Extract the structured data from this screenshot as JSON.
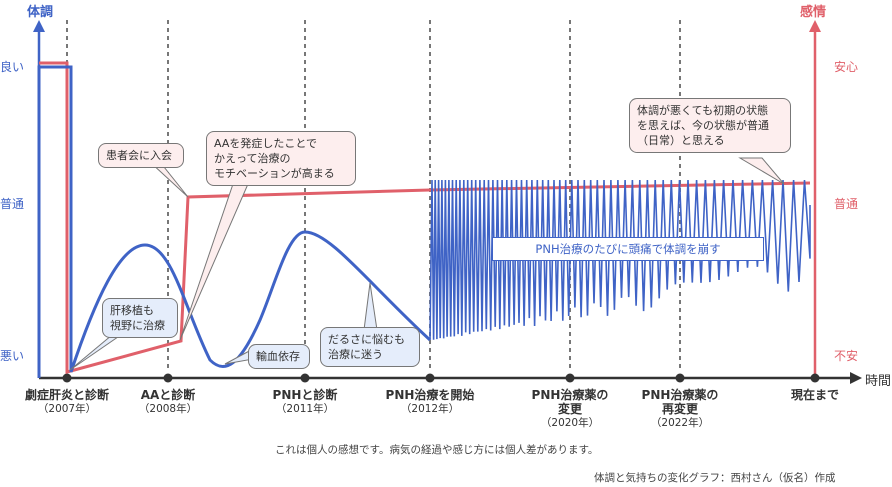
{
  "chart_data": {
    "type": "line",
    "title": "体調と気持ちの変化グラフ",
    "left_axis": {
      "title": "体調",
      "ticks": [
        "良い",
        "普通",
        "悪い"
      ],
      "color": "#3f63c6"
    },
    "right_axis": {
      "title": "感情",
      "ticks": [
        "安心",
        "普通",
        "不安"
      ],
      "color": "#e0606a"
    },
    "xlabel": "時間",
    "x_events": [
      {
        "label": "劇症肝炎と診断",
        "year": "（2007年）"
      },
      {
        "label": "AAと診断",
        "year": "（2008年）"
      },
      {
        "label": "PNHと診断",
        "year": "（2011年）"
      },
      {
        "label": "PNH治療を開始",
        "year": "（2012年）"
      },
      {
        "label": "PNH治療薬の変更",
        "year": "（2020年）"
      },
      {
        "label": "PNH治療薬の再変更",
        "year": "（2022年）"
      },
      {
        "label": "現在まで",
        "year": ""
      }
    ],
    "series": [
      {
        "name": "体調",
        "color": "#3f63c6",
        "description": "Starts at good (良い), drops sharply to worst (悪い) at 2007 diagnosis, rises to a hump just below normal before 2008, falls to bottom (輸血依存) before 2011, rises to near normal at 2011, declines to near bad by 2012, then oscillates rapidly between near-normal and bad after treatment starts, with oscillation amplitude gradually decreasing toward present.",
        "values_by_event": {
          "start": "良い",
          "2007": "悪い",
          "2008_peak": "やや悪い",
          "2011_trough": "悪い",
          "2011_peak": "やや悪い",
          "2012": "悪い",
          "2012_to_now": "振動(普通〜悪い)"
        }
      },
      {
        "name": "感情",
        "color": "#e0606a",
        "description": "Starts at 安心, drops to 不安 at 2007, gradually rises to slightly above 不安 by 2008, jumps to 普通 after joining patient association, then stays around 普通 with a slight upward trend until present.",
        "values_by_event": {
          "start": "安心",
          "2007": "不安",
          "2008": "やや不安",
          "after_2008": "普通",
          "now": "普通"
        }
      }
    ]
  },
  "labels": {
    "left_title": "体調",
    "right_title": "感情",
    "left_good": "良い",
    "left_normal": "普通",
    "left_bad": "悪い",
    "right_good": "安心",
    "right_normal": "普通",
    "right_bad": "不安",
    "x_title": "時間"
  },
  "x_labels": [
    {
      "label": "劇症肝炎と診断",
      "year": "（2007年）"
    },
    {
      "label": "AAと診断",
      "year": "（2008年）"
    },
    {
      "label": "PNHと診断",
      "year": "（2011年）"
    },
    {
      "label": "PNH治療を開始",
      "year": "（2012年）"
    },
    {
      "label_l1": "PNH治療薬の",
      "label_l2": "変更",
      "year": "（2020年）"
    },
    {
      "label_l1": "PNH治療薬の",
      "label_l2": "再変更",
      "year": "（2022年）"
    },
    {
      "label": "現在まで"
    }
  ],
  "callouts": {
    "liver": {
      "l1": "肝移植も",
      "l2": "視野に治療"
    },
    "association": {
      "l1": "患者会に入会"
    },
    "motivation": {
      "l1": "AAを発症したことで",
      "l2": "かえって治療の",
      "l3": "モチベーションが高まる"
    },
    "transfusion": {
      "l1": "輸血依存"
    },
    "fatigue": {
      "l1": "だるさに悩むも",
      "l2": "治療に迷う"
    },
    "now": {
      "l1": "体調が悪くても初期の状態",
      "l2": "を思えば、今の状態が普通",
      "l3": "（日常）と思える"
    },
    "banner": "PNH治療のたびに頭痛で体調を崩す"
  },
  "notes": {
    "disclaimer": "これは個人の感想です。病気の経過や感じ方には個人差があります。",
    "credit": "体調と気持ちの変化グラフ：西村さん（仮名）作成"
  }
}
